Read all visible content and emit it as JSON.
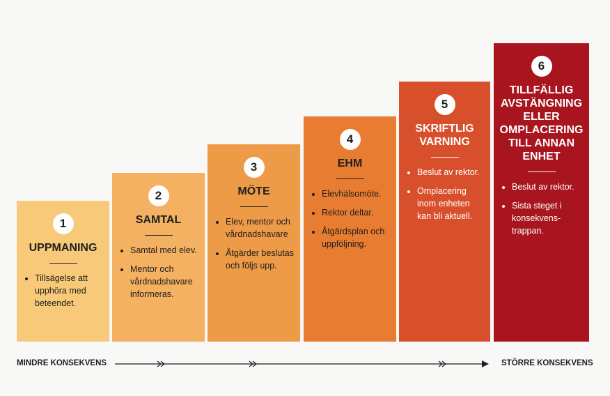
{
  "steps": [
    {
      "number": "1",
      "title": "UPPMANING",
      "bullets": [
        "Tillsägelse att upphöra med beteendet."
      ]
    },
    {
      "number": "2",
      "title": "SAMTAL",
      "bullets": [
        "Samtal med elev.",
        "Mentor och vårdnadshavare informeras."
      ]
    },
    {
      "number": "3",
      "title": "MÖTE",
      "bullets": [
        "Elev, mentor och vårdnads­havare",
        "Åtgärder beslutas och följs upp."
      ]
    },
    {
      "number": "4",
      "title": "EHM",
      "bullets": [
        "Elevhälsomöte.",
        "Rektor deltar.",
        "Åtgärdsplan och uppföljning."
      ]
    },
    {
      "number": "5",
      "title": "SKRIFTLIG VARNING",
      "bullets": [
        "Beslut av rektor.",
        "Omplacering inom enheten kan bli aktuell."
      ]
    },
    {
      "number": "6",
      "title": "TILLFÄLLIG AVSTÄNGNING ELLER OMPLACERING TILL ANNAN ENHET",
      "bullets": [
        "Beslut av rektor.",
        "Sista steget i konsekvens­trappan."
      ]
    }
  ],
  "footer": {
    "left": "MINDRE KONSEKVENS",
    "right": "STÖRRE KONSEKVENS"
  }
}
